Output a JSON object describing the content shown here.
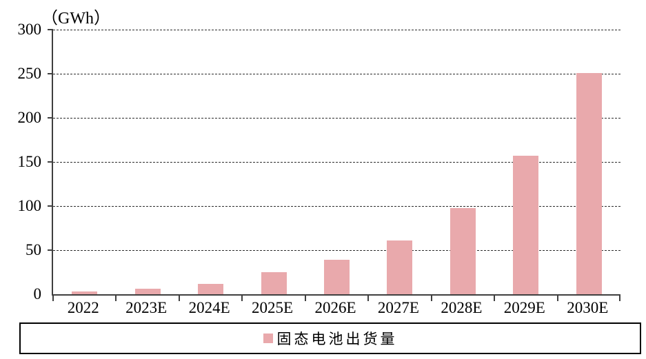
{
  "chart_data": {
    "type": "bar",
    "title": "",
    "ylabel_unit": "（GWh）",
    "categories": [
      "2022",
      "2023E",
      "2024E",
      "2025E",
      "2026E",
      "2027E",
      "2028E",
      "2029E",
      "2030E"
    ],
    "series": [
      {
        "name": "固态电池出货量",
        "values": [
          3,
          6,
          12,
          25,
          39,
          61,
          98,
          157,
          251
        ]
      }
    ],
    "ylim": [
      0,
      300
    ],
    "yticks": [
      0,
      50,
      100,
      150,
      200,
      250,
      300
    ],
    "grid": "horizontal-dashed",
    "legend_position": "bottom-boxed",
    "colors": {
      "bar": "#E9A9AC",
      "axis": "#3F3F3F",
      "gridline": "#2A2A2A",
      "text": "#000000",
      "legend_border": "#000000",
      "background": "#FFFFFF"
    }
  },
  "legend": {
    "items": [
      {
        "label": "固态电池出货量",
        "marker": "square",
        "color": "#E9A9AC"
      }
    ]
  }
}
